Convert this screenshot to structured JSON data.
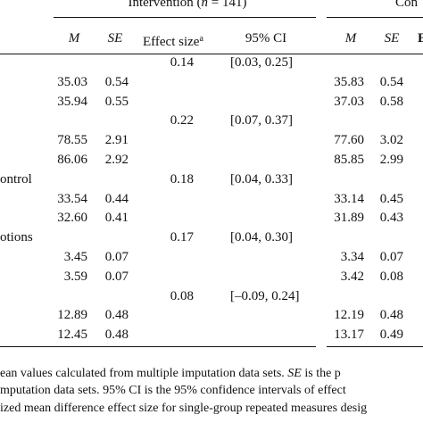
{
  "header": {
    "intervention_prefix": "Intervention (",
    "intervention_n": "n",
    "intervention_suffix": " = 141)",
    "control_partial": "Con",
    "col_m": "M",
    "col_se": "SE",
    "col_effect": "Effect size",
    "col_effect_sup": "a",
    "col_ci": "95% CI",
    "col_m2": "M",
    "col_se2": "SE",
    "col_cut": "E"
  },
  "rows": [
    {
      "label": "",
      "m": "",
      "se": "",
      "es": "0.14",
      "ci": "[0.03, 0.25]",
      "m2": "",
      "se2": ""
    },
    {
      "label": "",
      "m": "35.03",
      "se": "0.54",
      "es": "",
      "ci": "",
      "m2": "35.83",
      "se2": "0.54"
    },
    {
      "label": "",
      "m": "35.94",
      "se": "0.55",
      "es": "",
      "ci": "",
      "m2": "37.03",
      "se2": "0.58"
    },
    {
      "label": "",
      "m": "",
      "se": "",
      "es": "0.22",
      "ci": "[0.07, 0.37]",
      "m2": "",
      "se2": ""
    },
    {
      "label": "",
      "m": "78.55",
      "se": "2.91",
      "es": "",
      "ci": "",
      "m2": "77.60",
      "se2": "3.02"
    },
    {
      "label": "",
      "m": "86.06",
      "se": "2.92",
      "es": "",
      "ci": "",
      "m2": "85.85",
      "se2": "2.99"
    },
    {
      "label": "ontrol",
      "m": "",
      "se": "",
      "es": "0.18",
      "ci": "[0.04, 0.33]",
      "m2": "",
      "se2": ""
    },
    {
      "label": "",
      "m": "33.54",
      "se": "0.44",
      "es": "",
      "ci": "",
      "m2": "33.14",
      "se2": "0.45"
    },
    {
      "label": "",
      "m": "32.60",
      "se": "0.41",
      "es": "",
      "ci": "",
      "m2": "31.89",
      "se2": "0.43"
    },
    {
      "label": "otions",
      "m": "",
      "se": "",
      "es": "0.17",
      "ci": "[0.04, 0.30]",
      "m2": "",
      "se2": ""
    },
    {
      "label": "",
      "m": "3.45",
      "se": "0.07",
      "es": "",
      "ci": "",
      "m2": "3.34",
      "se2": "0.07"
    },
    {
      "label": "",
      "m": "3.59",
      "se": "0.07",
      "es": "",
      "ci": "",
      "m2": "3.42",
      "se2": "0.08"
    },
    {
      "label": "",
      "m": "",
      "se": "",
      "es": "0.08",
      "ci": "[–0.09, 0.24]",
      "m2": "",
      "se2": ""
    },
    {
      "label": "",
      "m": "12.89",
      "se": "0.48",
      "es": "",
      "ci": "",
      "m2": "12.19",
      "se2": "0.48"
    },
    {
      "label": "",
      "m": "12.45",
      "se": "0.48",
      "es": "",
      "ci": "",
      "m2": "13.17",
      "se2": "0.49"
    }
  ],
  "footnote": {
    "line1_a": "ean values calculated from multiple imputation data sets. ",
    "line1_b": "SE",
    "line1_c": " is the p",
    "line2": "mputation data sets. 95% CI  is the 95% confidence intervals of effect",
    "line3": "ized mean difference effect size for single-group repeated measures desig"
  }
}
